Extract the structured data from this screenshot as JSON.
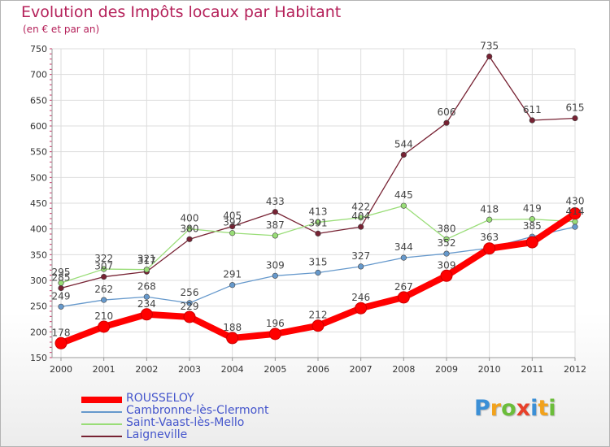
{
  "chart_data": {
    "type": "line",
    "title": "Evolution des Impôts locaux par Habitant",
    "subtitle": "(en € et par an)",
    "xlabel": "",
    "ylabel": "",
    "x": [
      "2000",
      "2001",
      "2002",
      "2003",
      "2004",
      "2005",
      "2006",
      "2007",
      "2008",
      "2009",
      "2010",
      "2011",
      "2012"
    ],
    "ylim": [
      150,
      750
    ],
    "yticks": [
      150,
      200,
      250,
      300,
      350,
      400,
      450,
      500,
      550,
      600,
      650,
      700,
      750
    ],
    "grid": true,
    "legend_position": "bottom-left",
    "series": [
      {
        "name": "ROUSSELOY",
        "color": "#ff0000",
        "values": [
          178,
          210,
          234,
          229,
          188,
          196,
          212,
          246,
          267,
          309,
          362,
          374,
          430
        ],
        "labels": [
          "178",
          "210",
          "234",
          "229",
          "188",
          "196",
          "212",
          "246",
          "267",
          "309",
          "",
          "",
          ""
        ]
      },
      {
        "name": "Cambronne-lès-Clermont",
        "color": "#6699cc",
        "values": [
          249,
          262,
          268,
          256,
          291,
          309,
          315,
          327,
          344,
          352,
          363,
          385,
          404
        ],
        "labels": [
          "249",
          "262",
          "268",
          "256",
          "291",
          "309",
          "315",
          "327",
          "344",
          "352",
          "363",
          "385",
          ""
        ]
      },
      {
        "name": "Saint-Vaast-lès-Mello",
        "color": "#99dd77",
        "values": [
          295,
          322,
          321,
          400,
          392,
          387,
          413,
          422,
          445,
          380,
          418,
          419,
          414
        ],
        "labels": [
          "295",
          "322",
          "321",
          "400",
          "392",
          "387",
          "413",
          "422",
          "445",
          "380",
          "418",
          "419",
          "414"
        ]
      },
      {
        "name": "Laigneville",
        "color": "#772233",
        "values": [
          285,
          307,
          317,
          380,
          405,
          433,
          391,
          404,
          544,
          606,
          735,
          611,
          615
        ],
        "labels": [
          "285",
          "307",
          "317",
          "380",
          "405",
          "433",
          "391",
          "404",
          "544",
          "606",
          "735",
          "611",
          "615"
        ]
      }
    ]
  },
  "logo": {
    "letters": [
      "P",
      "r",
      "o",
      "x",
      "i",
      "t",
      "i"
    ],
    "colors": [
      "#3b8fd6",
      "#f2a21c",
      "#6bbd3a",
      "#e8402a",
      "#3b8fd6",
      "#f2a21c",
      "#6bbd3a"
    ]
  }
}
